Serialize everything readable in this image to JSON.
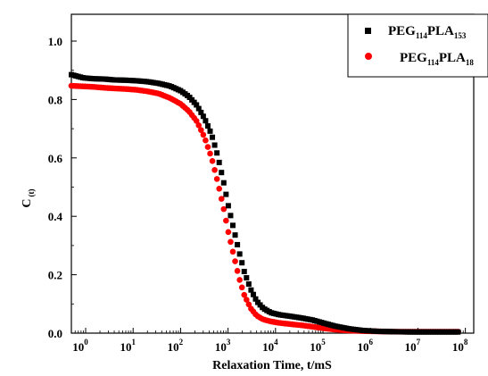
{
  "chart_data": {
    "type": "scatter",
    "title": "",
    "xlabel": "Relaxation Time, t/mS",
    "ylabel": {
      "base": "C",
      "sub": "(t)"
    },
    "xscale": "log",
    "xlim": [
      0.5,
      150000000
    ],
    "ylim": [
      0.0,
      1.0
    ],
    "xticks": [
      {
        "value": 1,
        "base": "10",
        "exp": "0"
      },
      {
        "value": 10,
        "base": "10",
        "exp": "1"
      },
      {
        "value": 100,
        "base": "10",
        "exp": "2"
      },
      {
        "value": 1000,
        "base": "10",
        "exp": "3"
      },
      {
        "value": 10000,
        "base": "10",
        "exp": "4"
      },
      {
        "value": 100000,
        "base": "10",
        "exp": "5"
      },
      {
        "value": 1000000,
        "base": "10",
        "exp": "6"
      },
      {
        "value": 10000000,
        "base": "10",
        "exp": "7"
      },
      {
        "value": 100000000,
        "base": "10",
        "exp": "8"
      }
    ],
    "yticks": [
      "0.0",
      "0.2",
      "0.4",
      "0.6",
      "0.8",
      "1.0"
    ],
    "grid": false,
    "legend_position": "top-right",
    "series": [
      {
        "name": {
          "a": "PEG",
          "a_sub": "114",
          "b": "PLA",
          "b_sub": "153"
        },
        "marker": "square",
        "color": "#000000",
        "points": [
          [
            0.5,
            0.885
          ],
          [
            0.9,
            0.874
          ],
          [
            1.5,
            0.871
          ],
          [
            2.5,
            0.87
          ],
          [
            4,
            0.867
          ],
          [
            7,
            0.866
          ],
          [
            12,
            0.864
          ],
          [
            20,
            0.861
          ],
          [
            35,
            0.855
          ],
          [
            60,
            0.846
          ],
          [
            100,
            0.83
          ],
          [
            150,
            0.81
          ],
          [
            220,
            0.78
          ],
          [
            320,
            0.735
          ],
          [
            450,
            0.68
          ],
          [
            600,
            0.61
          ],
          [
            800,
            0.52
          ],
          [
            1000,
            0.44
          ],
          [
            1300,
            0.36
          ],
          [
            1700,
            0.28
          ],
          [
            2200,
            0.21
          ],
          [
            3000,
            0.15
          ],
          [
            4000,
            0.11
          ],
          [
            5500,
            0.085
          ],
          [
            8000,
            0.07
          ],
          [
            12000,
            0.063
          ],
          [
            20000,
            0.058
          ],
          [
            35000,
            0.052
          ],
          [
            60000,
            0.045
          ],
          [
            100000,
            0.035
          ],
          [
            180000,
            0.024
          ],
          [
            350000,
            0.015
          ],
          [
            700000,
            0.009
          ],
          [
            1500000,
            0.006
          ],
          [
            3000000,
            0.005
          ],
          [
            7000000,
            0.004
          ],
          [
            15000000,
            0.004
          ],
          [
            30000000,
            0.004
          ],
          [
            70000000,
            0.004
          ]
        ]
      },
      {
        "name": {
          "a": "PEG",
          "a_sub": "114",
          "b": "PLA",
          "b_sub": "18"
        },
        "marker": "circle",
        "color": "#ff0000",
        "points": [
          [
            0.5,
            0.847
          ],
          [
            0.9,
            0.845
          ],
          [
            1.5,
            0.843
          ],
          [
            2.5,
            0.84
          ],
          [
            4,
            0.838
          ],
          [
            7,
            0.836
          ],
          [
            12,
            0.833
          ],
          [
            20,
            0.828
          ],
          [
            35,
            0.82
          ],
          [
            60,
            0.805
          ],
          [
            100,
            0.785
          ],
          [
            150,
            0.76
          ],
          [
            220,
            0.725
          ],
          [
            320,
            0.67
          ],
          [
            450,
            0.6
          ],
          [
            600,
            0.52
          ],
          [
            800,
            0.43
          ],
          [
            1000,
            0.35
          ],
          [
            1300,
            0.27
          ],
          [
            1700,
            0.19
          ],
          [
            2200,
            0.13
          ],
          [
            3000,
            0.085
          ],
          [
            4000,
            0.06
          ],
          [
            5500,
            0.047
          ],
          [
            8000,
            0.04
          ],
          [
            12000,
            0.035
          ],
          [
            20000,
            0.031
          ],
          [
            35000,
            0.027
          ],
          [
            60000,
            0.022
          ],
          [
            100000,
            0.017
          ],
          [
            180000,
            0.012
          ],
          [
            350000,
            0.009
          ],
          [
            700000,
            0.007
          ],
          [
            1500000,
            0.006
          ],
          [
            3000000,
            0.005
          ],
          [
            7000000,
            0.005
          ],
          [
            15000000,
            0.005
          ],
          [
            30000000,
            0.005
          ],
          [
            70000000,
            0.005
          ]
        ]
      }
    ],
    "colors": {
      "axis": "#000000"
    }
  }
}
